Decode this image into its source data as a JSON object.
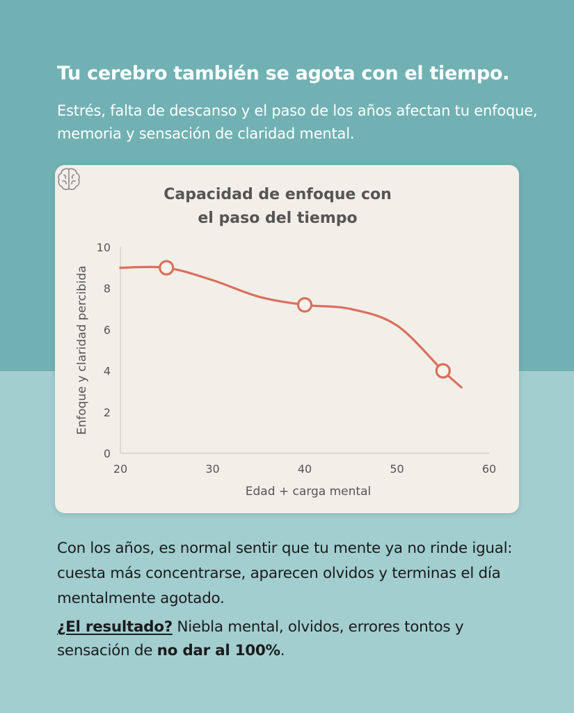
{
  "headline": "Tu cerebro también se agota con el tiempo.",
  "subheadline": "Estrés, falta de descanso y el paso de los años afectan tu enfoque, memoria y sensación de claridad mental.",
  "chart_icon": "brain-icon",
  "colors": {
    "background_top": "#71b1b3",
    "background_bottom": "#a2ced0",
    "card": "#f2eee8",
    "line": "#d9705c",
    "text_dark": "#1b1b1b",
    "title_gray": "#555555"
  },
  "chart_data": {
    "type": "line",
    "title": "Capacidad de enfoque con el paso del tiempo",
    "title_lines": [
      "Capacidad de enfoque con",
      "el paso del tiempo"
    ],
    "xlabel": "Edad + carga mental",
    "ylabel": "Enfoque y claridad percibida",
    "xlim": [
      20,
      60
    ],
    "ylim": [
      0,
      10
    ],
    "xticks": [
      20,
      30,
      40,
      50,
      60
    ],
    "yticks": [
      0,
      2,
      4,
      6,
      8,
      10
    ],
    "grid": false,
    "legend": "none",
    "series": [
      {
        "color": "#d9705c",
        "x": [
          20,
          25,
          30,
          35,
          40,
          45,
          50,
          55,
          57
        ],
        "y": [
          9.0,
          9.0,
          8.4,
          7.6,
          7.2,
          7.0,
          6.2,
          4.0,
          3.2
        ]
      }
    ],
    "markers": [
      {
        "x": 25,
        "y": 9.0
      },
      {
        "x": 40,
        "y": 7.2
      },
      {
        "x": 55,
        "y": 4.0
      }
    ]
  },
  "body_paragraph": "Con los años, es normal sentir que tu mente ya no rinde igual: cuesta más concentrarse, aparecen olvidos y terminas el día mentalmente agotado.",
  "result": {
    "label": "¿El resultado?",
    "text_before": " Niebla mental, olvidos, errores tontos y sensación de ",
    "emphasis": "no dar al 100%",
    "text_after": "."
  }
}
